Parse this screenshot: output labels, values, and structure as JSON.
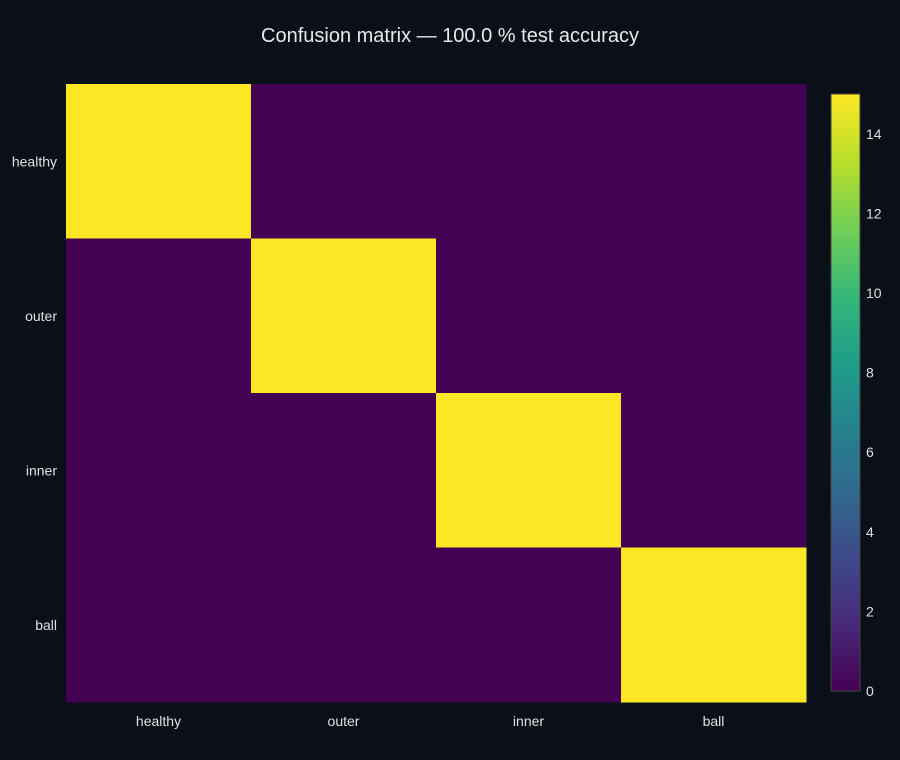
{
  "chart_data": {
    "type": "heatmap",
    "title": "Confusion matrix — 100.0 % test accuracy",
    "xlabel": "",
    "ylabel": "",
    "x_categories": [
      "healthy",
      "outer",
      "inner",
      "ball"
    ],
    "y_categories": [
      "healthy",
      "outer",
      "inner",
      "ball"
    ],
    "z": [
      [
        15,
        0,
        0,
        0
      ],
      [
        0,
        15,
        0,
        0
      ],
      [
        0,
        0,
        15,
        0
      ],
      [
        0,
        0,
        0,
        15
      ]
    ],
    "zmin": 0,
    "zmax": 15,
    "colorscale": "viridis",
    "colorbar": {
      "tick_values": [
        0,
        2,
        4,
        6,
        8,
        10,
        12,
        14
      ],
      "tick_labels": [
        "0",
        "2",
        "4",
        "6",
        "8",
        "10",
        "12",
        "14"
      ]
    }
  },
  "colors": {
    "background": "#0b1018",
    "text": "#e6e6e6",
    "colorbar_border": "#444444"
  }
}
